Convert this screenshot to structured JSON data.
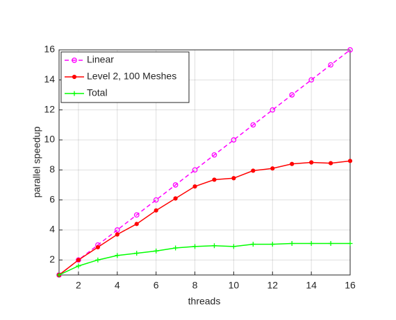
{
  "chart_data": {
    "type": "line",
    "xlabel": "threads",
    "ylabel": "parallel speedup",
    "x": [
      1,
      2,
      3,
      4,
      5,
      6,
      7,
      8,
      9,
      10,
      11,
      12,
      13,
      14,
      15,
      16
    ],
    "series": [
      {
        "name": "Linear",
        "color": "#ff00ff",
        "dashed": true,
        "marker": "circle",
        "values": [
          1,
          2,
          3,
          4,
          5,
          6,
          7,
          8,
          9,
          10,
          11,
          12,
          13,
          14,
          15,
          16
        ]
      },
      {
        "name": "Level 2, 100 Meshes",
        "color": "#ff0000",
        "dashed": false,
        "marker": "dot",
        "values": [
          1,
          2.0,
          2.85,
          3.7,
          4.4,
          5.3,
          6.1,
          6.9,
          7.35,
          7.45,
          7.95,
          8.1,
          8.4,
          8.5,
          8.45,
          8.6
        ]
      },
      {
        "name": "Total",
        "color": "#00ff00",
        "dashed": false,
        "marker": "plus",
        "values": [
          1,
          1.6,
          2.0,
          2.3,
          2.45,
          2.6,
          2.8,
          2.9,
          2.95,
          2.9,
          3.05,
          3.05,
          3.1,
          3.1,
          3.1,
          3.1
        ]
      }
    ],
    "xlim": [
      1,
      16
    ],
    "xticks": [
      2,
      4,
      6,
      8,
      10,
      12,
      14,
      16
    ],
    "ylim": [
      1,
      16
    ],
    "yticks": [
      2,
      4,
      6,
      8,
      10,
      12,
      14,
      16
    ],
    "grid": true,
    "legend": "upper-left"
  }
}
